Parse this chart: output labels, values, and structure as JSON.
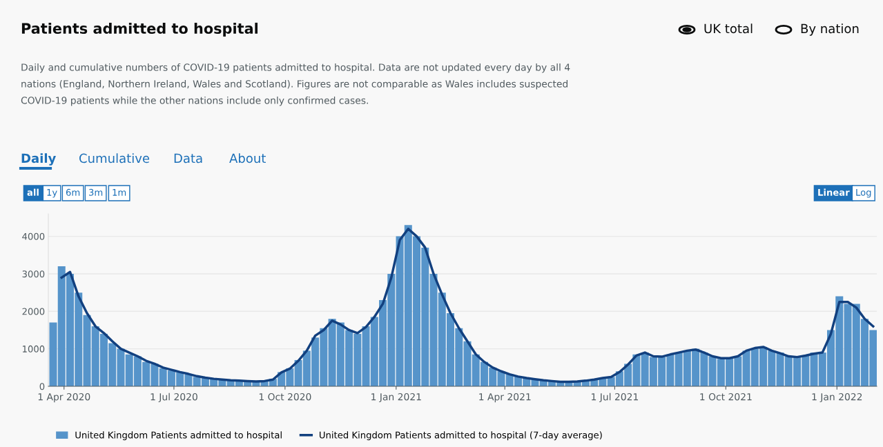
{
  "chart_data": {
    "type": "bar",
    "title": "Patients admitted to hospital",
    "subtitle": "Daily and cumulative numbers of COVID-19 patients admitted to hospital. Data are not updated every day by all 4 nations (England, Northern Ireland, Wales and Scotland). Figures are not comparable as Wales includes suspected COVID-19 patients while the other nations include only confirmed cases.",
    "annotations": [
      "UK total",
      "By nation",
      "Daily",
      "Cumulative",
      "Data",
      "About",
      "all",
      "1y",
      "6m",
      "3m",
      "1m",
      "Linear",
      "Log"
    ],
    "x": [
      "2020-03-23",
      "2020-03-30",
      "2020-04-06",
      "2020-04-13",
      "2020-04-20",
      "2020-04-27",
      "2020-05-04",
      "2020-05-11",
      "2020-05-18",
      "2020-05-25",
      "2020-06-01",
      "2020-06-08",
      "2020-06-15",
      "2020-06-22",
      "2020-06-29",
      "2020-07-06",
      "2020-07-13",
      "2020-07-20",
      "2020-07-27",
      "2020-08-03",
      "2020-08-10",
      "2020-08-17",
      "2020-08-24",
      "2020-08-31",
      "2020-09-07",
      "2020-09-14",
      "2020-09-21",
      "2020-09-28",
      "2020-10-05",
      "2020-10-12",
      "2020-10-19",
      "2020-10-26",
      "2020-11-02",
      "2020-11-09",
      "2020-11-16",
      "2020-11-23",
      "2020-11-30",
      "2020-12-07",
      "2020-12-14",
      "2020-12-21",
      "2020-12-28",
      "2021-01-04",
      "2021-01-11",
      "2021-01-18",
      "2021-01-25",
      "2021-02-01",
      "2021-02-08",
      "2021-02-15",
      "2021-02-22",
      "2021-03-01",
      "2021-03-08",
      "2021-03-15",
      "2021-03-22",
      "2021-03-29",
      "2021-04-05",
      "2021-04-12",
      "2021-04-19",
      "2021-04-26",
      "2021-05-03",
      "2021-05-10",
      "2021-05-17",
      "2021-05-24",
      "2021-05-31",
      "2021-06-07",
      "2021-06-14",
      "2021-06-21",
      "2021-06-28",
      "2021-07-05",
      "2021-07-12",
      "2021-07-19",
      "2021-07-26",
      "2021-08-02",
      "2021-08-09",
      "2021-08-16",
      "2021-08-23",
      "2021-08-30",
      "2021-09-06",
      "2021-09-13",
      "2021-09-20",
      "2021-09-27",
      "2021-10-04",
      "2021-10-11",
      "2021-10-18",
      "2021-10-25",
      "2021-11-01",
      "2021-11-08",
      "2021-11-15",
      "2021-11-22",
      "2021-11-29",
      "2021-12-06",
      "2021-12-13",
      "2021-12-20",
      "2021-12-27",
      "2022-01-03",
      "2022-01-10",
      "2022-01-17",
      "2022-01-24",
      "2022-01-31"
    ],
    "series": [
      {
        "name": "United Kingdom Patients admitted to hospital",
        "color": "#5694ca",
        "values": [
          1700,
          3200,
          3000,
          2500,
          1900,
          1600,
          1400,
          1150,
          1000,
          850,
          800,
          650,
          600,
          480,
          420,
          380,
          320,
          250,
          220,
          200,
          170,
          160,
          150,
          130,
          130,
          150,
          200,
          380,
          480,
          700,
          950,
          1300,
          1550,
          1800,
          1700,
          1500,
          1400,
          1600,
          1850,
          2300,
          3000,
          4000,
          4300,
          4000,
          3700,
          3000,
          2500,
          1950,
          1550,
          1200,
          850,
          650,
          500,
          400,
          320,
          260,
          220,
          190,
          160,
          140,
          120,
          120,
          130,
          150,
          190,
          230,
          250,
          400,
          600,
          850,
          900,
          780,
          780,
          850,
          900,
          950,
          1000,
          900,
          800,
          730,
          750,
          800,
          950,
          1000,
          1050,
          950,
          900,
          800,
          780,
          820,
          900,
          900,
          1500,
          2400,
          2200,
          2200,
          1800,
          1500
        ]
      },
      {
        "name": "United Kingdom Patients admitted to hospital (7-day average)",
        "type": "line",
        "color": "#12407f",
        "values": [
          null,
          2900,
          3050,
          2400,
          1950,
          1600,
          1420,
          1200,
          1000,
          900,
          800,
          680,
          600,
          500,
          440,
          380,
          330,
          270,
          230,
          200,
          180,
          160,
          150,
          140,
          130,
          140,
          180,
          370,
          470,
          680,
          950,
          1350,
          1500,
          1750,
          1650,
          1500,
          1420,
          1580,
          1850,
          2200,
          2900,
          3900,
          4200,
          4000,
          3700,
          3000,
          2450,
          1950,
          1550,
          1200,
          850,
          650,
          500,
          400,
          320,
          260,
          220,
          190,
          160,
          140,
          120,
          120,
          130,
          150,
          180,
          220,
          250,
          380,
          580,
          820,
          900,
          800,
          790,
          850,
          900,
          950,
          980,
          900,
          800,
          750,
          750,
          800,
          950,
          1020,
          1050,
          950,
          880,
          800,
          780,
          820,
          870,
          900,
          1400,
          2250,
          2250,
          2100,
          1800,
          1600
        ]
      }
    ],
    "xlim": [
      "2020-03-19",
      "2022-02-03"
    ],
    "xticks": [
      {
        "value": "2020-04-01",
        "label": "1 Apr 2020"
      },
      {
        "value": "2020-07-01",
        "label": "1 Jul 2020"
      },
      {
        "value": "2020-10-01",
        "label": "1 Oct 2020"
      },
      {
        "value": "2021-01-01",
        "label": "1 Jan 2021"
      },
      {
        "value": "2021-04-01",
        "label": "1 Apr 2021"
      },
      {
        "value": "2021-07-01",
        "label": "1 Jul 2021"
      },
      {
        "value": "2021-10-01",
        "label": "1 Oct 2021"
      },
      {
        "value": "2022-01-01",
        "label": "1 Jan 2022"
      }
    ],
    "ylim": [
      0,
      4600
    ],
    "yticks": [
      0,
      1000,
      2000,
      3000,
      4000
    ],
    "grid": "y",
    "legend": "bottom left"
  }
}
